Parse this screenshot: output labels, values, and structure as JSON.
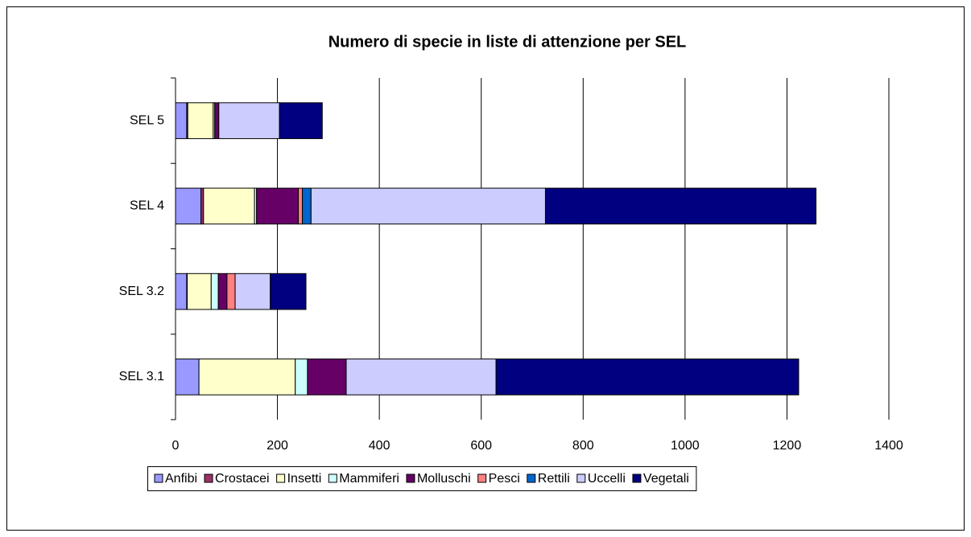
{
  "chart_data": {
    "type": "stacked-bar-horizontal",
    "title": "Numero di specie in liste di attenzione per SEL",
    "categories": [
      "SEL 3.1",
      "SEL 3.2",
      "SEL 4",
      "SEL 5"
    ],
    "series": [
      {
        "name": "Anfibi",
        "color": "#9999ff",
        "values": [
          46,
          22,
          50,
          22
        ]
      },
      {
        "name": "Crostacei",
        "color": "#993366",
        "values": [
          0,
          1,
          5,
          2
        ]
      },
      {
        "name": "Insetti",
        "color": "#ffffcc",
        "values": [
          189,
          47,
          100,
          50
        ]
      },
      {
        "name": "Mammiferi",
        "color": "#ccffff",
        "values": [
          24,
          14,
          4,
          3
        ]
      },
      {
        "name": "Molluschi",
        "color": "#660066",
        "values": [
          76,
          17,
          82,
          8
        ]
      },
      {
        "name": "Pesci",
        "color": "#ff8080",
        "values": [
          0,
          16,
          8,
          0
        ]
      },
      {
        "name": "Rettili",
        "color": "#0066cc",
        "values": [
          0,
          0,
          17,
          0
        ]
      },
      {
        "name": "Uccelli",
        "color": "#ccccff",
        "values": [
          294,
          69,
          460,
          119
        ]
      },
      {
        "name": "Vegetali",
        "color": "#000080",
        "values": [
          594,
          70,
          531,
          84
        ]
      }
    ],
    "xlim": [
      0,
      1400
    ],
    "xticks": [
      0,
      200,
      400,
      600,
      800,
      1000,
      1200,
      1400
    ],
    "grid": true,
    "legend": "bottom"
  }
}
